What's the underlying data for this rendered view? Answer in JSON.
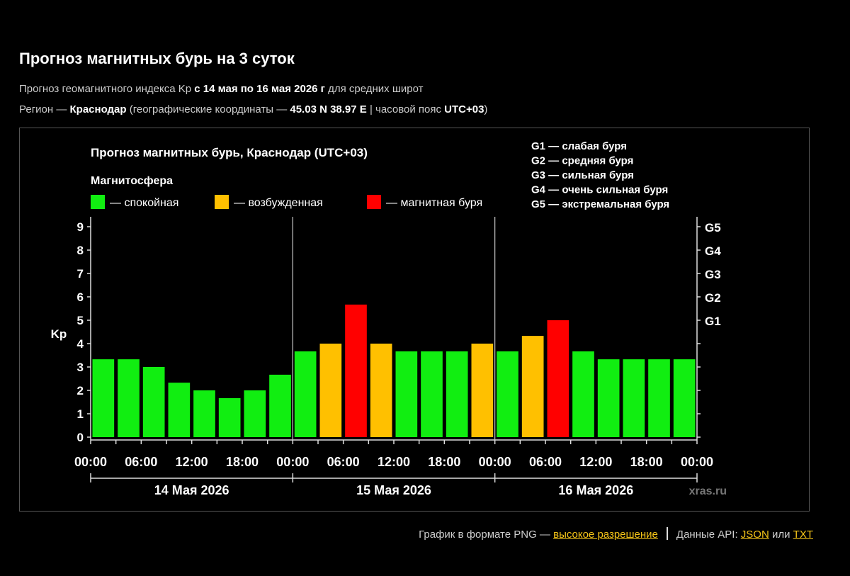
{
  "page": {
    "title": "Прогноз магнитных бурь на 3 суток",
    "subtitle1": {
      "prefix": "Прогноз геомагнитного индекса Kp ",
      "range": "с 14 мая по 16 мая 2026 г",
      "suffix": " для средних широт"
    },
    "subtitle2": {
      "prefix": "Регион — ",
      "city": "Краснодар",
      "mid": " (географические координаты — ",
      "coords": "45.03 N 38.97 E",
      "mid2": " | часовой пояс ",
      "tz": "UTC+03",
      "suffix": ")"
    }
  },
  "footer": {
    "png_text": "График в формате PNG — ",
    "png_link": "высокое разрешение",
    "api_text": "Данные API: ",
    "json_link": "JSON",
    "or_text": " или ",
    "txt_link": "TXT"
  },
  "chart_data": {
    "type": "bar",
    "title": "Прогноз магнитных бурь, Краснодар (UTC+03)",
    "legend_title": "Магнитосфера",
    "legend": [
      {
        "label": "— спокойная",
        "color": "#11ee11"
      },
      {
        "label": "— возбужденная",
        "color": "#ffc000"
      },
      {
        "label": "— магнитная буря",
        "color": "#ff0000"
      }
    ],
    "storm_scale": [
      "G1 — слабая буря",
      "G2 — средняя буря",
      "G3 — сильная буря",
      "G4 — очень сильная буря",
      "G5 — экстремальная буря"
    ],
    "ylabel": "Kp",
    "ylim": [
      0,
      9
    ],
    "yticks": [
      "0",
      "1",
      "2",
      "3",
      "4",
      "5",
      "6",
      "7",
      "8",
      "9"
    ],
    "right_ticks": [
      {
        "value": 5,
        "label": "G1"
      },
      {
        "value": 6,
        "label": "G2"
      },
      {
        "value": 7,
        "label": "G3"
      },
      {
        "value": 8,
        "label": "G4"
      },
      {
        "value": 9,
        "label": "G5"
      }
    ],
    "xtick_labels": [
      "00:00",
      "06:00",
      "12:00",
      "18:00",
      "00:00",
      "06:00",
      "12:00",
      "18:00",
      "00:00",
      "06:00",
      "12:00",
      "18:00",
      "00:00"
    ],
    "days": [
      "14 Мая 2026",
      "15 Мая 2026",
      "16 Мая 2026"
    ],
    "interval_hours": 3,
    "values": [
      3.33,
      3.33,
      3.0,
      2.33,
      2.0,
      1.67,
      2.0,
      2.67,
      3.67,
      4.0,
      5.67,
      4.0,
      3.67,
      3.67,
      3.67,
      4.0,
      3.67,
      4.33,
      5.0,
      3.67,
      3.33,
      3.33,
      3.33,
      3.33
    ],
    "levels": [
      "quiet",
      "quiet",
      "quiet",
      "quiet",
      "quiet",
      "quiet",
      "quiet",
      "quiet",
      "quiet",
      "active",
      "storm",
      "active",
      "quiet",
      "quiet",
      "quiet",
      "active",
      "quiet",
      "active",
      "storm",
      "quiet",
      "quiet",
      "quiet",
      "quiet",
      "quiet"
    ],
    "level_colors": {
      "quiet": "#11ee11",
      "active": "#ffc000",
      "storm": "#ff0000"
    },
    "watermark": "xras.ru",
    "grid": false
  }
}
